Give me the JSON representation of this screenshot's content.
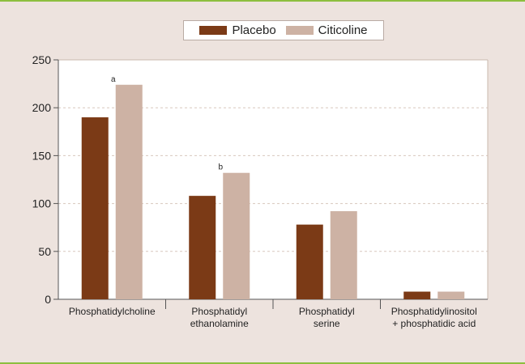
{
  "colors": {
    "frame_border": "#8dbf3f",
    "background": "#ede3de",
    "plot_bg": "#ffffff"
  },
  "chart_data": {
    "type": "bar",
    "title": "",
    "xlabel": "",
    "ylabel": "",
    "categories": [
      [
        "Phosphatidylcholine"
      ],
      [
        "Phosphatidyl",
        "ethanolamine"
      ],
      [
        "Phosphatidyl",
        "serine"
      ],
      [
        "Phosphatidylinositol",
        "+ phosphatidic acid"
      ]
    ],
    "series": [
      {
        "name": "Placebo",
        "color": "#7b3a16",
        "values": [
          190,
          108,
          78,
          8
        ]
      },
      {
        "name": "Citicoline",
        "color": "#cdb2a4",
        "values": [
          224,
          132,
          92,
          8
        ]
      }
    ],
    "ylim": [
      0,
      250
    ],
    "yticks": [
      0,
      50,
      100,
      150,
      200,
      250
    ],
    "grid": true,
    "legend_position": "top-center",
    "annotations": [
      {
        "text": "a",
        "category_index": 0,
        "series_index": 1
      },
      {
        "text": "b",
        "category_index": 1,
        "series_index": 1
      }
    ]
  }
}
